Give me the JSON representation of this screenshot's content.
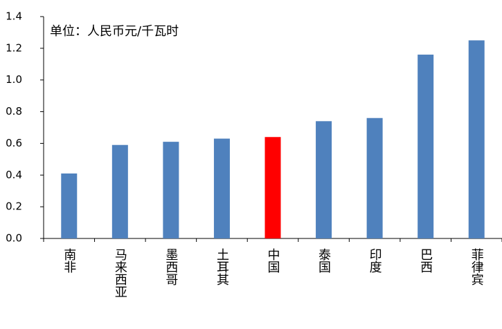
{
  "chart_data": {
    "type": "bar",
    "annotation": "单位：人民币元/千瓦时",
    "categories": [
      "南非",
      "马来西亚",
      "墨西哥",
      "土耳其",
      "中国",
      "泰国",
      "印度",
      "巴西",
      "菲律宾"
    ],
    "values": [
      0.41,
      0.59,
      0.61,
      0.63,
      0.64,
      0.74,
      0.76,
      1.16,
      1.25
    ],
    "colors": [
      "#4f81bd",
      "#4f81bd",
      "#4f81bd",
      "#4f81bd",
      "#ff0000",
      "#4f81bd",
      "#4f81bd",
      "#4f81bd",
      "#4f81bd"
    ],
    "ylim": [
      0,
      1.4
    ],
    "yticks": [
      {
        "value": 0,
        "label": "0.0"
      },
      0.2,
      0.4,
      0.6,
      0.8,
      {
        "value": 1,
        "label": "1.0"
      },
      1.2,
      1.4
    ],
    "grid": false
  }
}
